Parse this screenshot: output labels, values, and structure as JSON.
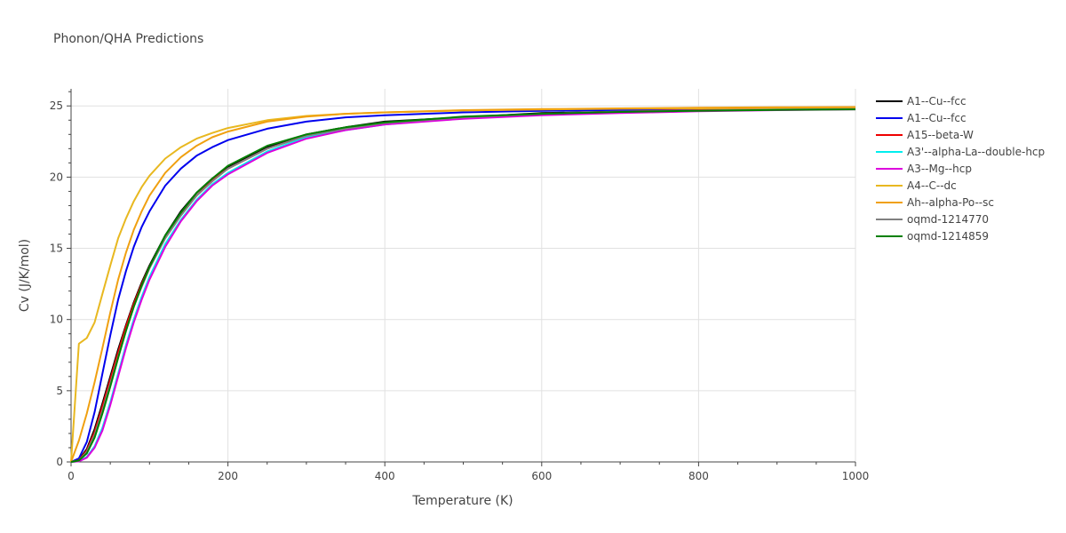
{
  "chart_data": {
    "type": "line",
    "title": "Phonon/QHA Predictions",
    "xlabel": "Temperature (K)",
    "ylabel": "Cv (J/K/mol)",
    "xlim": [
      0,
      1000
    ],
    "ylim": [
      0,
      26.2
    ],
    "xticks": [
      0,
      200,
      400,
      600,
      800,
      1000
    ],
    "yticks": [
      0,
      5,
      10,
      15,
      20,
      25
    ],
    "grid": true,
    "legend_position": "right",
    "x": [
      0,
      10,
      20,
      30,
      40,
      50,
      60,
      70,
      80,
      90,
      100,
      120,
      140,
      160,
      180,
      200,
      250,
      300,
      350,
      400,
      500,
      600,
      700,
      800,
      900,
      1000
    ],
    "series": [
      {
        "name": "A1--Cu--fcc",
        "color": "#000000",
        "values": [
          0,
          0.15,
          0.9,
          2.3,
          4.1,
          6.0,
          7.9,
          9.6,
          11.2,
          12.6,
          13.8,
          15.9,
          17.6,
          18.9,
          19.9,
          20.7,
          22.1,
          23.0,
          23.5,
          23.9,
          24.2,
          24.5,
          24.6,
          24.7,
          24.75,
          24.8
        ]
      },
      {
        "name": "A1--Cu--fcc",
        "color": "#0000ee",
        "values": [
          0,
          0.25,
          1.4,
          3.5,
          6.2,
          8.9,
          11.4,
          13.4,
          15.1,
          16.5,
          17.6,
          19.4,
          20.6,
          21.5,
          22.1,
          22.6,
          23.4,
          23.9,
          24.2,
          24.35,
          24.55,
          24.65,
          24.72,
          24.77,
          24.8,
          24.82
        ]
      },
      {
        "name": "A15--beta-W",
        "color": "#ee0000",
        "values": [
          0,
          0.12,
          0.8,
          2.1,
          3.9,
          5.8,
          7.7,
          9.5,
          11.1,
          12.5,
          13.7,
          15.8,
          17.4,
          18.7,
          19.8,
          20.6,
          22.0,
          22.9,
          23.4,
          23.8,
          24.2,
          24.45,
          24.6,
          24.7,
          24.75,
          24.8
        ]
      },
      {
        "name": "A3'--alpha-La--double-hcp",
        "color": "#00eeee",
        "values": [
          0,
          0.05,
          0.35,
          1.1,
          2.4,
          4.2,
          6.2,
          8.2,
          10.0,
          11.6,
          13.0,
          15.3,
          17.0,
          18.4,
          19.5,
          20.3,
          21.8,
          22.8,
          23.3,
          23.7,
          24.15,
          24.4,
          24.55,
          24.65,
          24.72,
          24.78
        ]
      },
      {
        "name": "A3--Mg--hcp",
        "color": "#dd00dd",
        "values": [
          0,
          0.04,
          0.3,
          1.0,
          2.2,
          4.0,
          6.0,
          8.0,
          9.8,
          11.4,
          12.8,
          15.1,
          16.9,
          18.3,
          19.4,
          20.2,
          21.7,
          22.7,
          23.3,
          23.7,
          24.1,
          24.35,
          24.5,
          24.62,
          24.7,
          24.76
        ]
      },
      {
        "name": "A4--C--dc",
        "color": "#e8b820",
        "values": [
          0,
          8.3,
          8.7,
          9.8,
          11.8,
          13.8,
          15.7,
          17.1,
          18.3,
          19.3,
          20.1,
          21.3,
          22.1,
          22.7,
          23.1,
          23.45,
          24.0,
          24.3,
          24.45,
          24.55,
          24.68,
          24.75,
          24.8,
          24.83,
          24.85,
          24.87
        ]
      },
      {
        "name": "Ah--alpha-Po--sc",
        "color": "#f0a010",
        "values": [
          0,
          1.5,
          3.4,
          5.6,
          8.0,
          10.5,
          12.8,
          14.7,
          16.3,
          17.6,
          18.7,
          20.3,
          21.4,
          22.2,
          22.8,
          23.2,
          23.9,
          24.25,
          24.45,
          24.55,
          24.7,
          24.78,
          24.83,
          24.87,
          24.9,
          24.92
        ]
      },
      {
        "name": "oqmd-1214770",
        "color": "#808080",
        "values": [
          0,
          0.1,
          0.7,
          1.9,
          3.6,
          5.5,
          7.4,
          9.2,
          10.9,
          12.3,
          13.6,
          15.7,
          17.3,
          18.7,
          19.7,
          20.6,
          22.0,
          22.9,
          23.4,
          23.8,
          24.2,
          24.45,
          24.6,
          24.68,
          24.74,
          24.78
        ]
      },
      {
        "name": "oqmd-1214859",
        "color": "#008000",
        "values": [
          0,
          0.1,
          0.6,
          1.7,
          3.4,
          5.3,
          7.3,
          9.2,
          10.9,
          12.4,
          13.7,
          15.9,
          17.5,
          18.9,
          19.9,
          20.8,
          22.2,
          23.0,
          23.5,
          23.85,
          24.25,
          24.45,
          24.58,
          24.66,
          24.72,
          24.76
        ]
      }
    ]
  }
}
